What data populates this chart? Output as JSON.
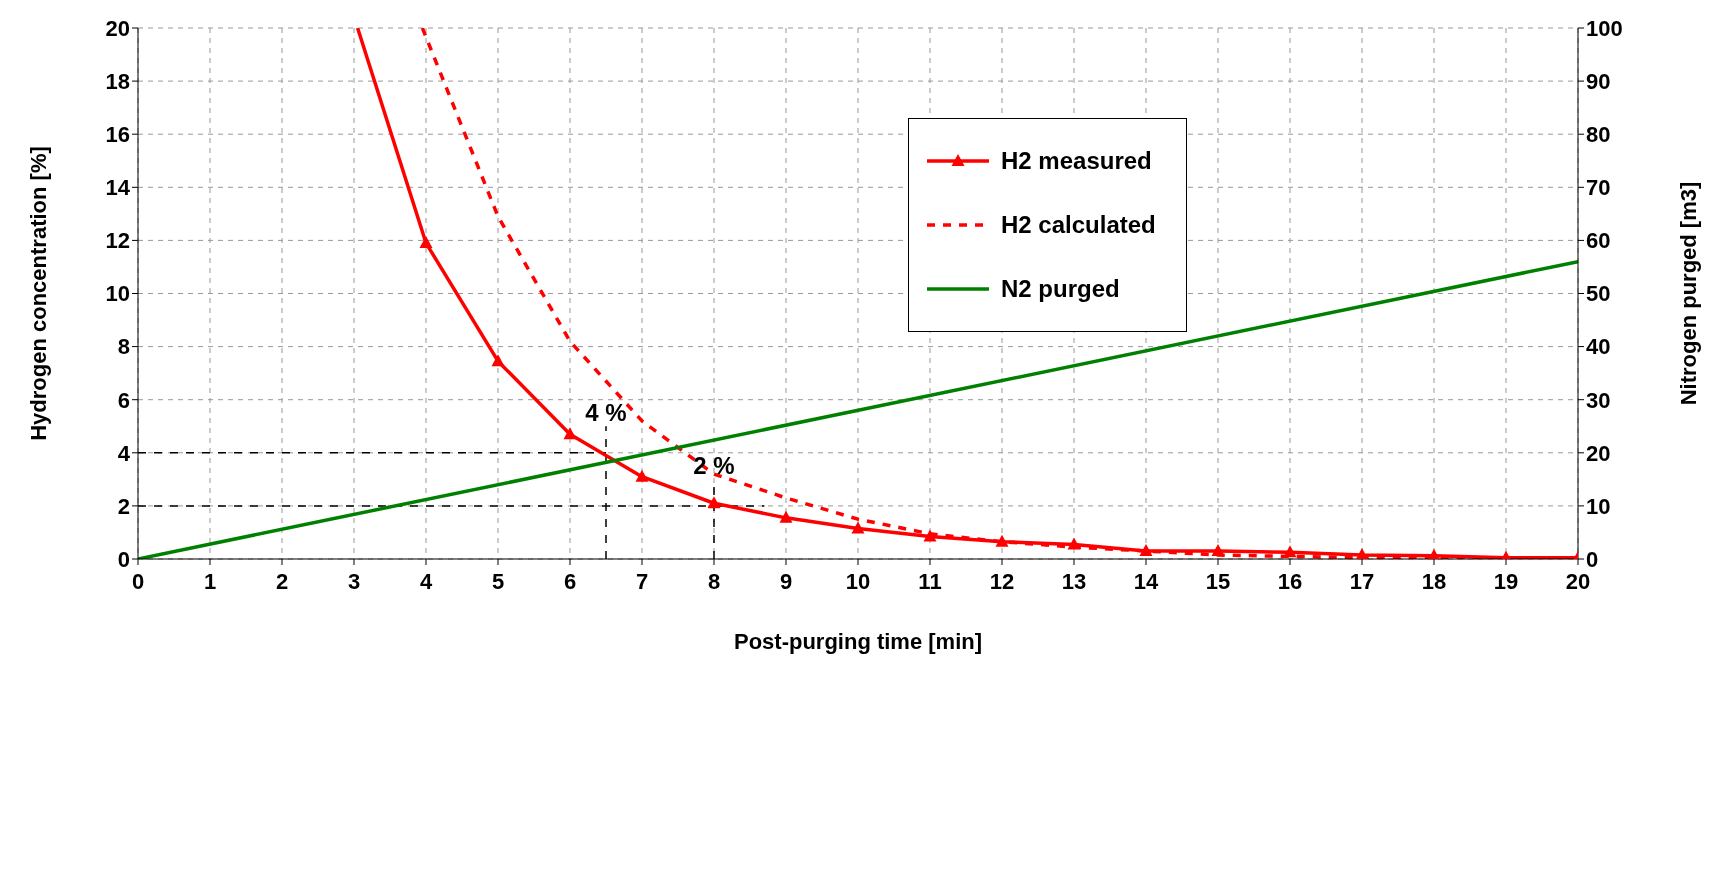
{
  "chart_data": {
    "type": "line",
    "xlabel": "Post-purging time [min]",
    "ylabel": "Hydrogen concentration [%]",
    "y2label": "Nitrogen purged [m3]",
    "xlim": [
      0,
      20
    ],
    "xticks": [
      0,
      1,
      2,
      3,
      4,
      5,
      6,
      7,
      8,
      9,
      10,
      11,
      12,
      13,
      14,
      15,
      16,
      17,
      18,
      19,
      20
    ],
    "ylim": [
      0,
      20
    ],
    "yticks": [
      0,
      2,
      4,
      6,
      8,
      10,
      12,
      14,
      16,
      18,
      20
    ],
    "y2lim": [
      0,
      100
    ],
    "y2ticks": [
      0,
      10,
      20,
      30,
      40,
      50,
      60,
      70,
      80,
      90,
      100
    ],
    "grid": true,
    "legend": "top right",
    "series": [
      {
        "name": "H2 measured",
        "color": "#ff0000",
        "marker": "triangle",
        "line_style": "solid",
        "x": [
          3.05,
          4,
          5,
          6,
          7,
          8,
          9,
          10,
          11,
          12,
          13,
          14,
          15,
          16,
          17,
          18,
          19,
          20
        ],
        "values": [
          20,
          11.9,
          7.45,
          4.7,
          3.1,
          2.1,
          1.55,
          1.15,
          0.85,
          0.65,
          0.55,
          0.3,
          0.3,
          0.25,
          0.15,
          0.12,
          0.05,
          0.05
        ]
      },
      {
        "name": "H2 calculated",
        "color": "#ff0000",
        "marker": "none",
        "line_style": "dashed",
        "x": [
          3.95,
          5,
          6,
          7,
          8,
          9,
          10,
          11,
          12,
          13,
          14,
          15,
          16,
          17,
          18,
          19,
          20
        ],
        "values": [
          20,
          12.9,
          8.2,
          5.2,
          3.2,
          2.3,
          1.5,
          0.95,
          0.65,
          0.45,
          0.3,
          0.15,
          0.1,
          0.05,
          0.03,
          0.02,
          0.01
        ]
      },
      {
        "name": "N2 purged",
        "color": "#008000",
        "marker": "none",
        "line_style": "solid",
        "axis": "y2",
        "x": [
          0,
          20
        ],
        "values": [
          0,
          56
        ]
      }
    ],
    "ref_lines": [
      {
        "axis": "y",
        "value": 4,
        "color": "#000000",
        "line_style": "dashed",
        "label": "4 %"
      },
      {
        "axis": "y",
        "value": 2,
        "color": "#000000",
        "line_style": "dashed",
        "label": "2 %"
      },
      {
        "axis": "x",
        "value": 6.5,
        "color": "#000000",
        "line_style": "dashed"
      },
      {
        "axis": "x",
        "value": 8,
        "color": "#000000",
        "line_style": "dashed"
      }
    ]
  }
}
